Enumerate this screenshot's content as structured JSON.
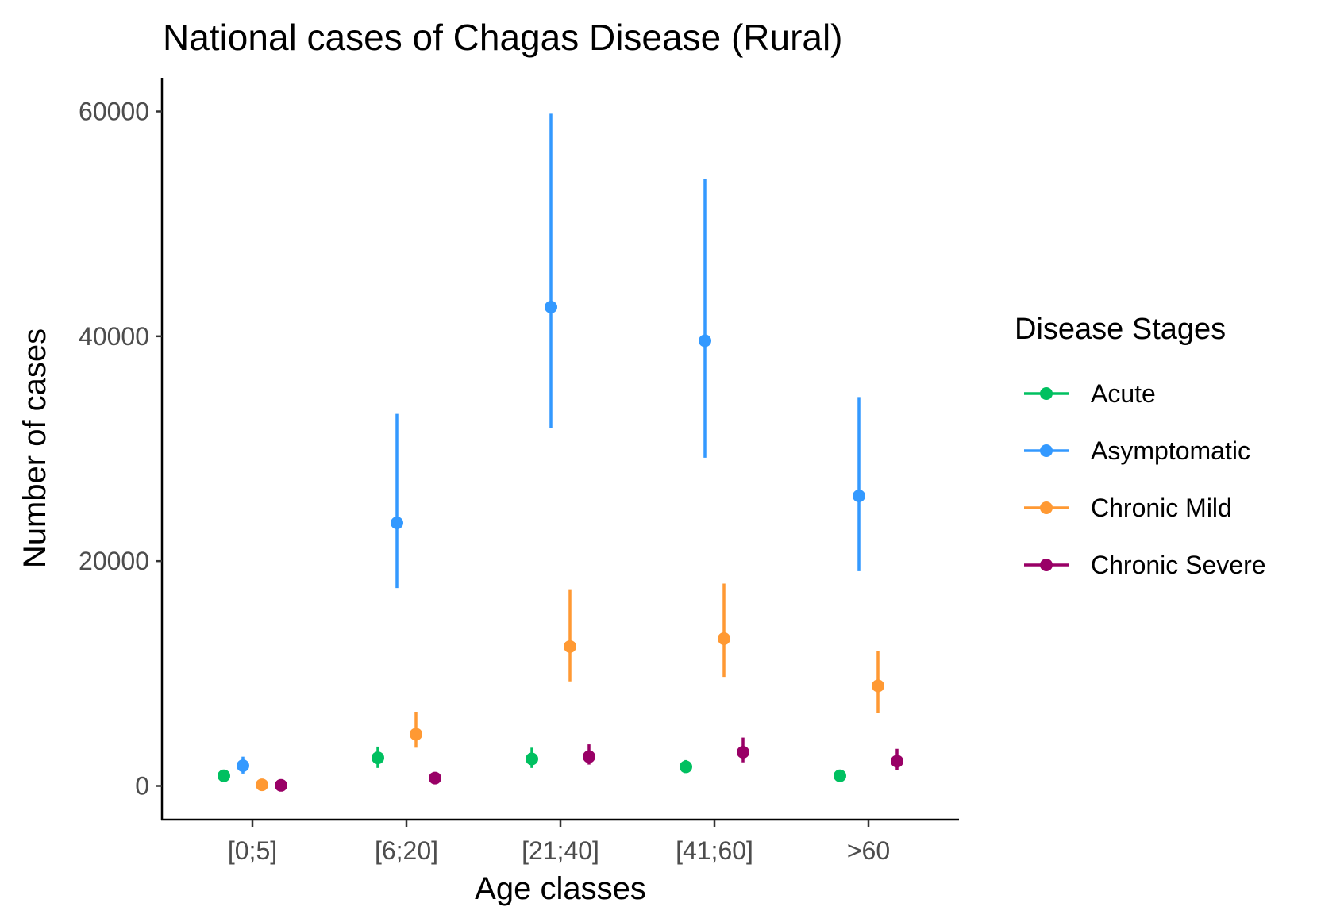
{
  "chart_data": {
    "type": "scatter",
    "title": "National cases of Chagas Disease (Rural)",
    "xlabel": "Age classes",
    "ylabel": "Number of cases",
    "categories": [
      "[0;5]",
      "[6;20]",
      "[21;40]",
      "[41;60]",
      ">60"
    ],
    "ylim": [
      -3000,
      63000
    ],
    "yticks": [
      0,
      20000,
      40000,
      60000
    ],
    "grid": false,
    "legend": {
      "title": "Disease Stages",
      "position": "right"
    },
    "series": [
      {
        "name": "Acute",
        "color": "#00c060",
        "values": [
          900,
          2500,
          2400,
          1700,
          900
        ],
        "lower": [
          900,
          1600,
          1600,
          1200,
          900
        ],
        "upper": [
          900,
          3500,
          3400,
          2300,
          900
        ]
      },
      {
        "name": "Asymptomatic",
        "color": "#3399ff",
        "values": [
          1800,
          23400,
          42600,
          39600,
          25800
        ],
        "lower": [
          1100,
          17600,
          31800,
          29200,
          19100
        ],
        "upper": [
          2600,
          33100,
          59800,
          54000,
          34600
        ]
      },
      {
        "name": "Chronic Mild",
        "color": "#ff9933",
        "values": [
          100,
          4600,
          12400,
          13100,
          8900
        ],
        "lower": [
          100,
          3400,
          9300,
          9700,
          6500
        ],
        "upper": [
          100,
          6600,
          17500,
          18000,
          12000
        ]
      },
      {
        "name": "Chronic Severe",
        "color": "#990066",
        "values": [
          50,
          700,
          2600,
          3000,
          2200
        ],
        "lower": [
          50,
          700,
          1900,
          2100,
          1400
        ],
        "upper": [
          50,
          700,
          3700,
          4300,
          3300
        ]
      }
    ]
  }
}
